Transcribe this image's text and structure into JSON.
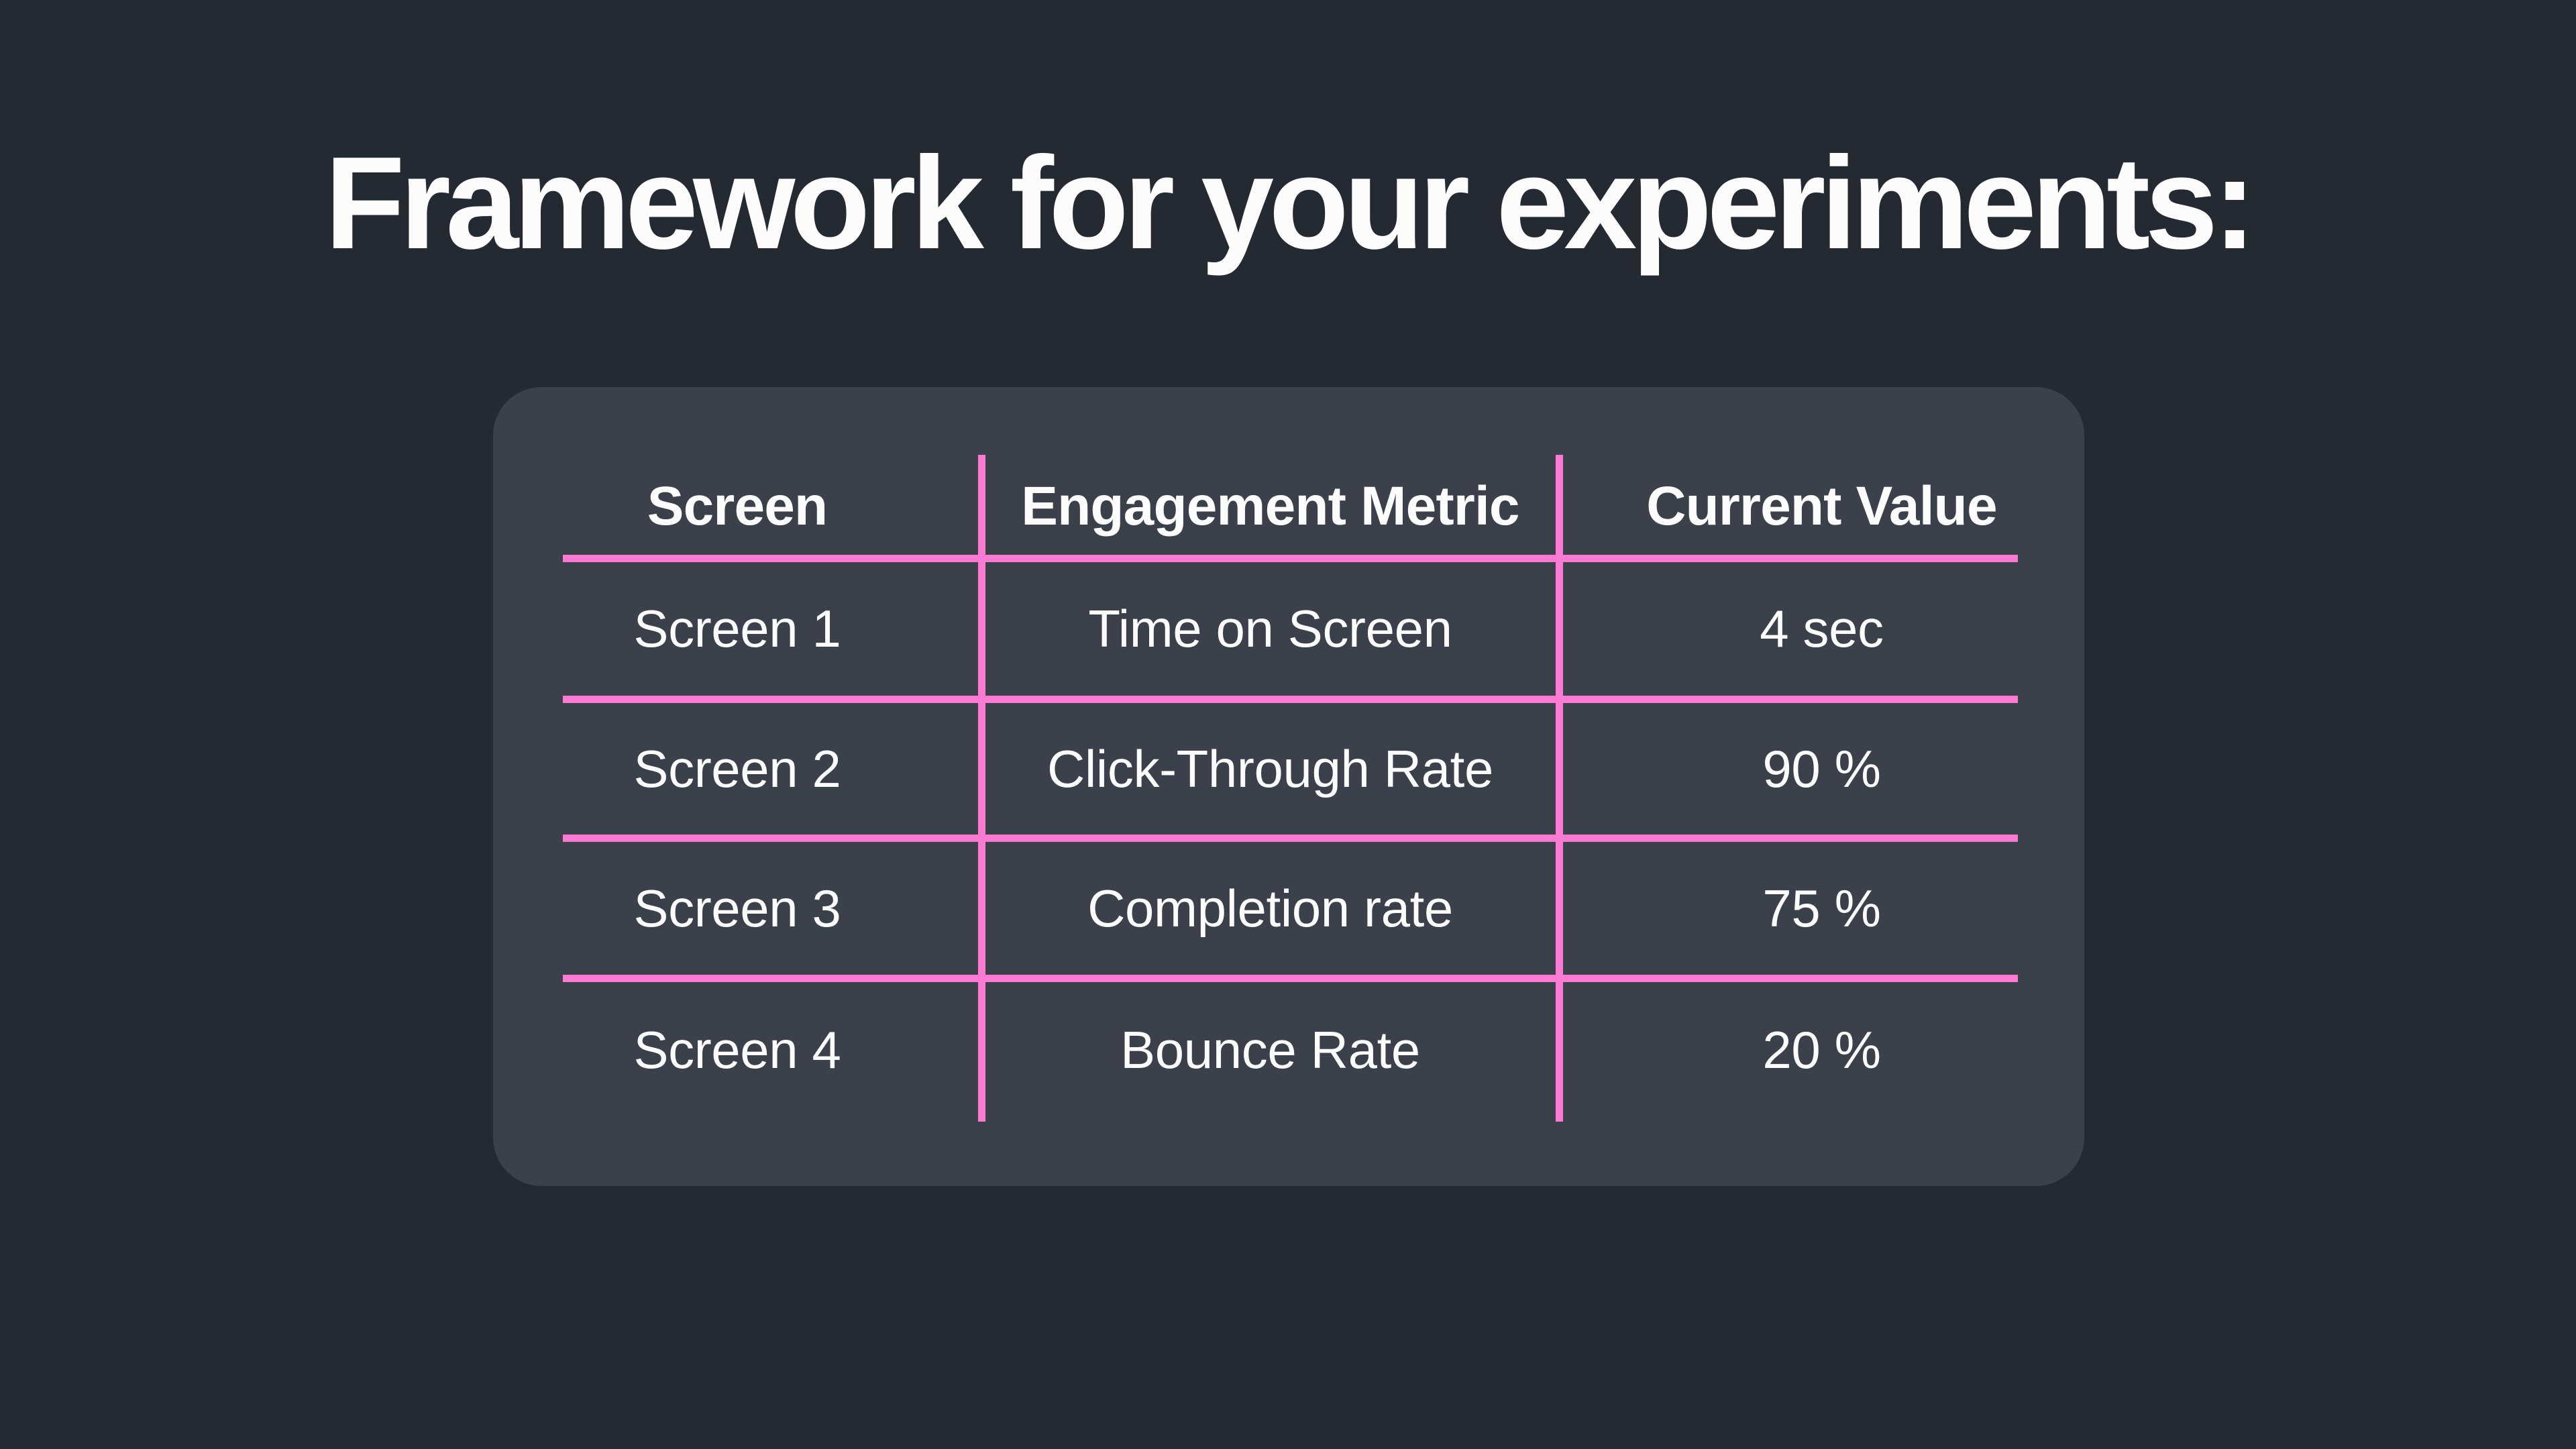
{
  "title": "Framework for your experiments:",
  "colors": {
    "page-bg": "#242932",
    "card-bg": "#3b404a",
    "accent-pink": "#fd7ad3",
    "text-white": "#fcfcfd"
  },
  "table": {
    "columns": [
      "Screen",
      "Engagement Metric",
      "Current Value"
    ],
    "rows": [
      {
        "screen": "Screen 1",
        "metric": "Time on Screen",
        "value": "4 sec"
      },
      {
        "screen": "Screen 2",
        "metric": "Click-Through Rate",
        "value": "90 %"
      },
      {
        "screen": "Screen 3",
        "metric": "Completion rate",
        "value": "75 %"
      },
      {
        "screen": "Screen 4",
        "metric": "Bounce Rate",
        "value": "20 %"
      }
    ]
  }
}
